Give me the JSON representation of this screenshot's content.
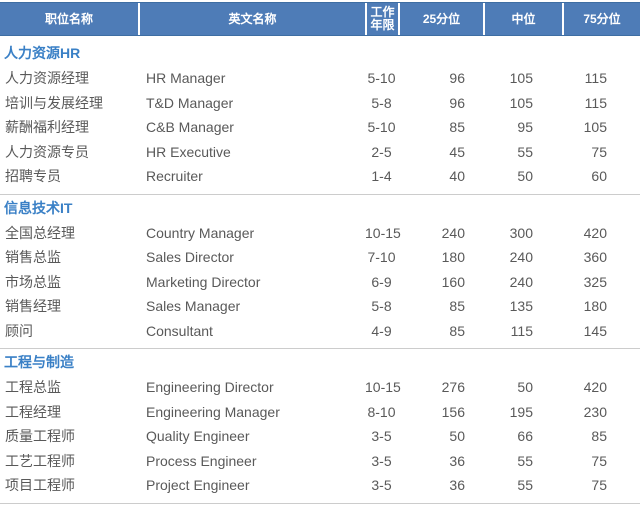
{
  "table": {
    "columns": [
      {
        "key": "title_cn",
        "label": "职位名称"
      },
      {
        "key": "title_en",
        "label": "英文名称"
      },
      {
        "key": "years",
        "label": "工作年限"
      },
      {
        "key": "p25",
        "label": "25分位"
      },
      {
        "key": "median",
        "label": "中位"
      },
      {
        "key": "p75",
        "label": "75分位"
      }
    ],
    "sections": [
      {
        "key": "hr",
        "name": "人力资源HR",
        "rows": [
          [
            "人力资源经理",
            "HR Manager",
            "5-10",
            "96",
            "105",
            "115"
          ],
          [
            "培训与发展经理",
            "T&D Manager",
            "5-8",
            "96",
            "105",
            "115"
          ],
          [
            "薪酬福利经理",
            "C&B Manager",
            "5-10",
            "85",
            "95",
            "105"
          ],
          [
            "人力资源专员",
            "HR Executive",
            "2-5",
            "45",
            "55",
            "75"
          ],
          [
            "招聘专员",
            "Recruiter",
            "1-4",
            "40",
            "50",
            "60"
          ]
        ]
      },
      {
        "key": "it",
        "name": "信息技术IT",
        "rows": [
          [
            "全国总经理",
            "Country Manager",
            "10-15",
            "240",
            "300",
            "420"
          ],
          [
            "销售总监",
            "Sales Director",
            "7-10",
            "180",
            "240",
            "360"
          ],
          [
            "市场总监",
            "Marketing Director",
            "6-9",
            "160",
            "240",
            "325"
          ],
          [
            "销售经理",
            "Sales Manager",
            "5-8",
            "85",
            "135",
            "180"
          ],
          [
            "顾问",
            "Consultant",
            "4-9",
            "85",
            "115",
            "145"
          ]
        ]
      },
      {
        "key": "engineering",
        "name": "工程与制造",
        "rows": [
          [
            "工程总监",
            "Engineering Director",
            "10-15",
            "276",
            "50",
            "420"
          ],
          [
            "工程经理",
            "Engineering Manager",
            "8-10",
            "156",
            "195",
            "230"
          ],
          [
            "质量工程师",
            "Quality Engineer",
            "3-5",
            "50",
            "66",
            "85"
          ],
          [
            "工艺工程师",
            "Process Engineer",
            "3-5",
            "36",
            "55",
            "75"
          ],
          [
            "项目工程师",
            "Project Engineer",
            "3-5",
            "36",
            "55",
            "75"
          ]
        ]
      }
    ]
  },
  "colors": {
    "header_background": "#4e7cb7",
    "header_border": "#3e6ea3",
    "header_text": "#ffffff",
    "section_title_text": "#3a80c6",
    "body_text": "#595959",
    "separator_line": "#cccccc",
    "page_background": "#ffffff"
  }
}
